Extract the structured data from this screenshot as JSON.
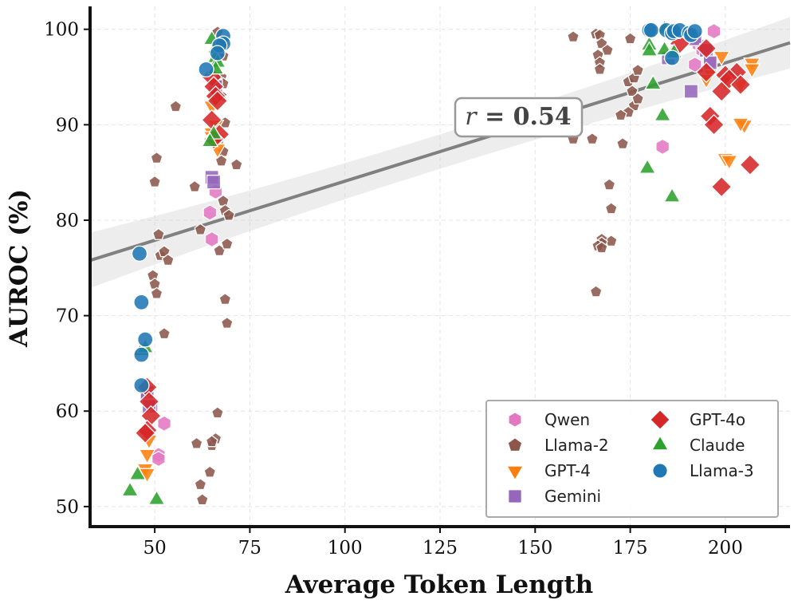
{
  "chart_data": {
    "type": "scatter",
    "title": "",
    "xlabel": "Average Token Length",
    "ylabel": "AUROC (%)",
    "xlim": [
      33,
      217
    ],
    "ylim": [
      47.9,
      102.4
    ],
    "xticks": [
      50,
      75,
      100,
      125,
      150,
      175,
      200
    ],
    "yticks": [
      50,
      60,
      70,
      80,
      90,
      100
    ],
    "grid": true,
    "legend": "lower-right",
    "annotation": {
      "italic": "r",
      "text": " = 0.54",
      "x": 140.5,
      "y": 90.6
    },
    "regression": {
      "slope": 0.1239,
      "intercept": 71.7,
      "band": 2.3
    },
    "series": [
      {
        "name": "Qwen",
        "marker": "hexagon",
        "color": "#e377c2",
        "points": [
          [
            197,
            99.8
          ],
          [
            193,
            98.4
          ],
          [
            194,
            97.8
          ],
          [
            196,
            96.5
          ],
          [
            192,
            96.3
          ],
          [
            183.5,
            87.7
          ],
          [
            66,
            83
          ],
          [
            64.5,
            80.8
          ],
          [
            65,
            78
          ],
          [
            52.5,
            58.7
          ],
          [
            51,
            55.4
          ],
          [
            51,
            55
          ]
        ]
      },
      {
        "name": "Llama-2",
        "marker": "pentagon",
        "color": "#8c564b",
        "points": [
          [
            66.5,
            99.7
          ],
          [
            67,
            98.2
          ],
          [
            68,
            97.2
          ],
          [
            67.5,
            95
          ],
          [
            68,
            94.3
          ],
          [
            67.5,
            93
          ],
          [
            68.5,
            90.2
          ],
          [
            67,
            88.5
          ],
          [
            68,
            87.2
          ],
          [
            67.5,
            86.2
          ],
          [
            71.5,
            85.8
          ],
          [
            60.5,
            83.5
          ],
          [
            68,
            82
          ],
          [
            68.5,
            81
          ],
          [
            69.5,
            80.5
          ],
          [
            62,
            79
          ],
          [
            67,
            76.8
          ],
          [
            69,
            77.5
          ],
          [
            50.5,
            86.5
          ],
          [
            50,
            84
          ],
          [
            55.5,
            91.9
          ],
          [
            51,
            78.5
          ],
          [
            51.5,
            76.3
          ],
          [
            52.5,
            76.7
          ],
          [
            53.5,
            75.8
          ],
          [
            49.5,
            74.2
          ],
          [
            50,
            73.3
          ],
          [
            50.5,
            72.3
          ],
          [
            52.5,
            68.1
          ],
          [
            68.5,
            71.7
          ],
          [
            69,
            69.2
          ],
          [
            66.5,
            59.8
          ],
          [
            61,
            56.6
          ],
          [
            65,
            56.4
          ],
          [
            66,
            57.1
          ],
          [
            65,
            56.8
          ],
          [
            64.5,
            53.6
          ],
          [
            62,
            52.3
          ],
          [
            62.5,
            50.7
          ],
          [
            160,
            99.2
          ],
          [
            166,
            99.5
          ],
          [
            167,
            99.4
          ],
          [
            167.5,
            98.5
          ],
          [
            169,
            97.8
          ],
          [
            166.5,
            97.3
          ],
          [
            167,
            96.5
          ],
          [
            167,
            95.8
          ],
          [
            175,
            99
          ],
          [
            174.5,
            94.5
          ],
          [
            176,
            94.9
          ],
          [
            177,
            95.7
          ],
          [
            175.5,
            93.5
          ],
          [
            176,
            92
          ],
          [
            177,
            92.7
          ],
          [
            174.5,
            91.3
          ],
          [
            172.5,
            91
          ],
          [
            173,
            88
          ],
          [
            160,
            88.5
          ],
          [
            165,
            88.5
          ],
          [
            169.5,
            83.7
          ],
          [
            170,
            81.2
          ],
          [
            170,
            77.8
          ],
          [
            167.5,
            78
          ],
          [
            167.5,
            77.6
          ],
          [
            166.5,
            77.3
          ],
          [
            167.5,
            77.1
          ],
          [
            166,
            72.5
          ]
        ]
      },
      {
        "name": "GPT-4",
        "marker": "triangle-down",
        "color": "#ff7f0e",
        "points": [
          [
            199,
            97.2
          ],
          [
            207,
            96.5
          ],
          [
            207,
            95.9
          ],
          [
            196,
            95.5
          ],
          [
            195,
            94.8
          ],
          [
            200,
            94.5
          ],
          [
            204,
            94.3
          ],
          [
            205,
            90
          ],
          [
            204,
            90.2
          ],
          [
            200,
            86.5
          ],
          [
            201,
            86.3
          ],
          [
            65,
            92
          ],
          [
            66,
            90
          ],
          [
            65,
            89.2
          ],
          [
            65,
            88.8
          ],
          [
            66.5,
            87.5
          ],
          [
            48,
            57.5
          ],
          [
            48.5,
            57
          ],
          [
            48,
            55.5
          ],
          [
            47.5,
            54
          ],
          [
            48,
            53.5
          ]
        ]
      },
      {
        "name": "Gemini",
        "marker": "square",
        "color": "#9467bd",
        "points": [
          [
            192,
            99
          ],
          [
            195,
            97.8
          ],
          [
            196,
            96.5
          ],
          [
            185,
            97
          ],
          [
            191,
            93.5
          ],
          [
            66,
            94
          ],
          [
            65,
            84.5
          ],
          [
            65.5,
            84
          ],
          [
            48,
            62
          ],
          [
            48,
            61.5
          ],
          [
            49,
            60.6
          ],
          [
            48.5,
            60.5
          ]
        ]
      },
      {
        "name": "GPT-4o",
        "marker": "diamond",
        "color": "#d62728",
        "points": [
          [
            188,
            98.5
          ],
          [
            195,
            98
          ],
          [
            195,
            95.5
          ],
          [
            200,
            95.2
          ],
          [
            203,
            95.5
          ],
          [
            201,
            94.8
          ],
          [
            204,
            94.2
          ],
          [
            199,
            93.5
          ],
          [
            196,
            90.9
          ],
          [
            197,
            90
          ],
          [
            199,
            83.5
          ],
          [
            206.5,
            85.8
          ],
          [
            65,
            95
          ],
          [
            65.5,
            94
          ],
          [
            66,
            93
          ],
          [
            66.5,
            92.5
          ],
          [
            65,
            90.5
          ],
          [
            67,
            89
          ],
          [
            65.5,
            88.5
          ],
          [
            48,
            62.5
          ],
          [
            48.5,
            61
          ],
          [
            49,
            59.5
          ],
          [
            48,
            58
          ],
          [
            47.5,
            57.7
          ]
        ]
      },
      {
        "name": "Claude",
        "marker": "triangle-up",
        "color": "#2ca02c",
        "points": [
          [
            184,
            100
          ],
          [
            186,
            99.5
          ],
          [
            184,
            97.8
          ],
          [
            186,
            97.4
          ],
          [
            180,
            98.3
          ],
          [
            180,
            97.7
          ],
          [
            186.5,
            97.5
          ],
          [
            181,
            94.2
          ],
          [
            183.5,
            90.9
          ],
          [
            179.5,
            85.4
          ],
          [
            186,
            82.4
          ],
          [
            65,
            98.9
          ],
          [
            66,
            98
          ],
          [
            66,
            97
          ],
          [
            66.5,
            96.5
          ],
          [
            66,
            95.8
          ],
          [
            65.5,
            89
          ],
          [
            64.5,
            88.2
          ],
          [
            46.5,
            66.3
          ],
          [
            47.5,
            66.6
          ],
          [
            45.5,
            53.3
          ],
          [
            43.5,
            51.6
          ],
          [
            50.5,
            50.7
          ]
        ]
      },
      {
        "name": "Llama-3",
        "marker": "circle",
        "color": "#1f77b4",
        "points": [
          [
            180,
            99.9
          ],
          [
            180.5,
            99.9
          ],
          [
            184.5,
            99.9
          ],
          [
            186,
            99.6
          ],
          [
            186.5,
            99.8
          ],
          [
            188,
            99.9
          ],
          [
            190.5,
            99.6
          ],
          [
            191,
            99.4
          ],
          [
            192,
            99.8
          ],
          [
            186,
            97
          ],
          [
            68,
            99.3
          ],
          [
            68,
            98.5
          ],
          [
            67,
            98.3
          ],
          [
            66.5,
            97.5
          ],
          [
            63.5,
            95.8
          ],
          [
            46,
            76.5
          ],
          [
            46.5,
            71.4
          ],
          [
            47.5,
            67.5
          ],
          [
            46.5,
            65.9
          ],
          [
            46.5,
            62.7
          ]
        ]
      }
    ]
  }
}
